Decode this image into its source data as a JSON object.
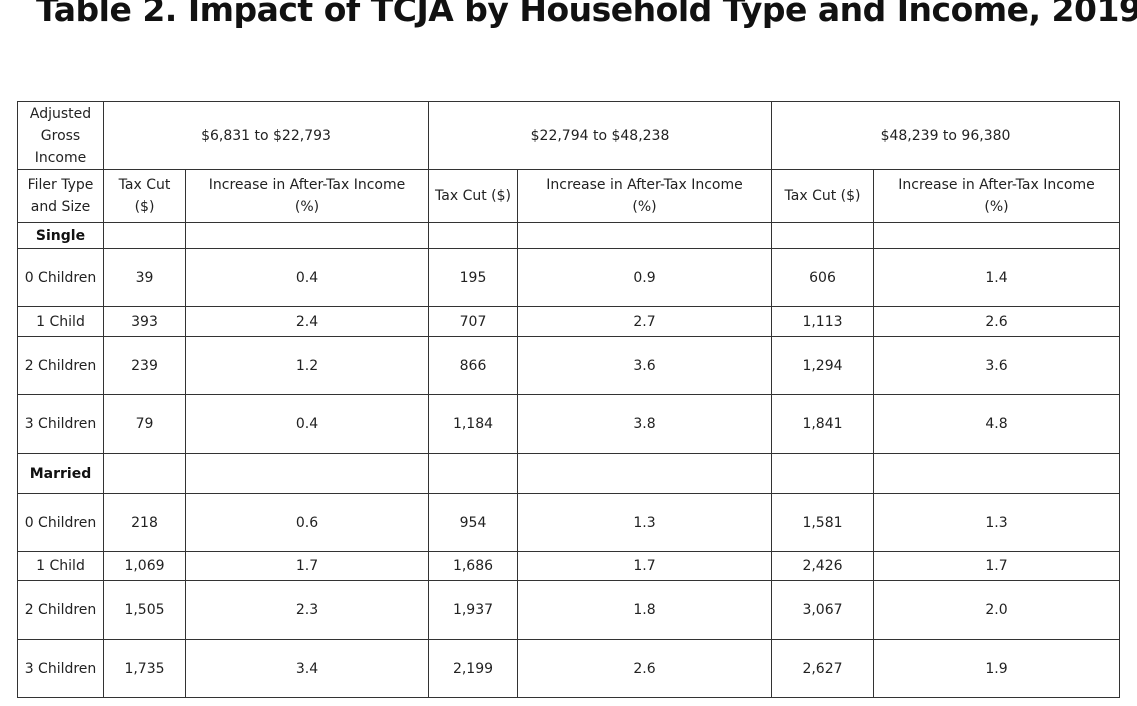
{
  "title": "Table 2. Impact of TCJA by Household Type and Income, 2019",
  "table": {
    "corner_label": [
      "Adjusted",
      "Gross",
      "Income"
    ],
    "income_brackets": [
      "$6,831 to $22,793",
      "$22,794 to $48,238",
      "$48,239 to 96,380"
    ],
    "filer_label": [
      "Filer Type",
      "and Size"
    ],
    "subheaders": {
      "b1": {
        "tax_cut": [
          "Tax Cut",
          "($)"
        ],
        "increase": [
          "Increase in After-Tax Income",
          "(%)"
        ]
      },
      "b2": {
        "tax_cut": [
          "Tax Cut ($)"
        ],
        "increase": [
          "Increase in After-Tax Income",
          "(%)"
        ]
      },
      "b3": {
        "tax_cut": [
          "Tax Cut ($)"
        ],
        "increase": [
          "Increase in After-Tax Income",
          "(%)"
        ]
      }
    },
    "groups": [
      {
        "name": "Single",
        "rows": [
          {
            "label": "0 Children",
            "values": [
              "39",
              "0.4",
              "195",
              "0.9",
              "606",
              "1.4"
            ]
          },
          {
            "label": "1 Child",
            "values": [
              "393",
              "2.4",
              "707",
              "2.7",
              "1,113",
              "2.6"
            ]
          },
          {
            "label": "2 Children",
            "values": [
              "239",
              "1.2",
              "866",
              "3.6",
              "1,294",
              "3.6"
            ]
          },
          {
            "label": "3 Children",
            "values": [
              "79",
              "0.4",
              "1,184",
              "3.8",
              "1,841",
              "4.8"
            ]
          }
        ]
      },
      {
        "name": "Married",
        "rows": [
          {
            "label": "0 Children",
            "values": [
              "218",
              "0.6",
              "954",
              "1.3",
              "1,581",
              "1.3"
            ]
          },
          {
            "label": "1 Child",
            "values": [
              "1,069",
              "1.7",
              "1,686",
              "1.7",
              "2,426",
              "1.7"
            ]
          },
          {
            "label": "2 Children",
            "values": [
              "1,505",
              "2.3",
              "1,937",
              "1.8",
              "3,067",
              "2.0"
            ]
          },
          {
            "label": "3 Children",
            "values": [
              "1,735",
              "3.4",
              "2,199",
              "2.6",
              "2,627",
              "1.9"
            ]
          }
        ]
      }
    ]
  }
}
